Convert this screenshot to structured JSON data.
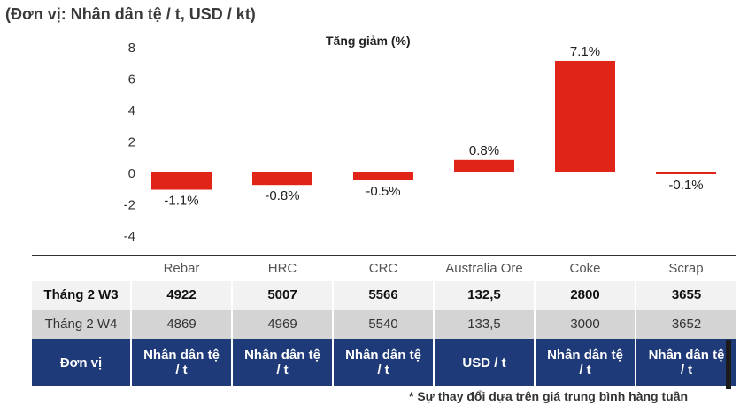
{
  "header": {
    "unit_title": "(Đơn vị: Nhân dân tệ / t, USD / kt)"
  },
  "chart_data": {
    "type": "bar",
    "title": "Tăng giảm (%)",
    "categories": [
      "Rebar",
      "HRC",
      "CRC",
      "Australia Ore",
      "Coke",
      "Scrap"
    ],
    "values": [
      -1.1,
      -0.8,
      -0.5,
      0.8,
      7.1,
      -0.1
    ],
    "data_labels": [
      "-1.1%",
      "-0.8%",
      "-0.5%",
      "0.8%",
      "7.1%",
      "-0.1%"
    ],
    "ylim": [
      -4,
      8
    ],
    "yticks": [
      8,
      6,
      4,
      2,
      0,
      -2,
      -4
    ],
    "bar_color": "#e02418",
    "grid": false
  },
  "table": {
    "rows": [
      {
        "label": "Tháng 2 W3",
        "values": [
          "4922",
          "5007",
          "5566",
          "132,5",
          "2800",
          "3655"
        ]
      },
      {
        "label": "Tháng 2 W4",
        "values": [
          "4869",
          "4969",
          "5540",
          "133,5",
          "3000",
          "3652"
        ]
      }
    ],
    "unit_row": {
      "label": "Đơn vị",
      "values": [
        [
          "Nhân dân tệ",
          "/ t"
        ],
        [
          "Nhân dân tệ",
          "/ t"
        ],
        [
          "Nhân dân tệ",
          "/ t"
        ],
        [
          "USD / t"
        ],
        [
          "Nhân dân tệ",
          "/ t"
        ],
        [
          "Nhân dân tệ",
          "/ t"
        ]
      ]
    },
    "unit_row_color": "#1f3a78"
  },
  "footnote": "* Sự thay đổi dựa trên giá trung bình hàng tuần"
}
